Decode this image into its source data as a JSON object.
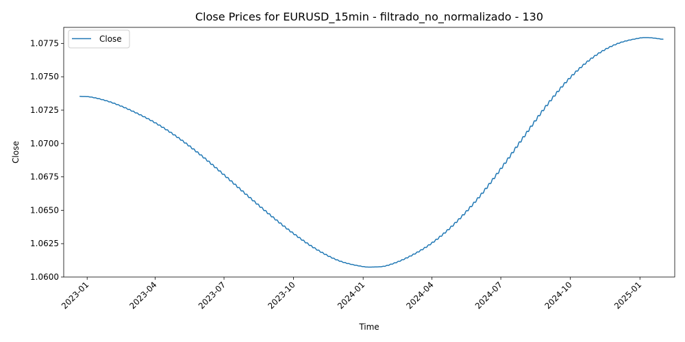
{
  "chart_data": {
    "type": "line",
    "title": "Close Prices for EURUSD_15min - filtrado_no_normalizado - 130",
    "xlabel": "Time",
    "ylabel": "Close",
    "x_range": [
      "2022-12-01",
      "2025-02-16"
    ],
    "ylim": [
      1.06,
      1.0787
    ],
    "grid": false,
    "legend_placement": "upper-left",
    "line_color": "#1f77b4",
    "x_ticks": [
      "2023-01",
      "2023-04",
      "2023-07",
      "2023-10",
      "2024-01",
      "2024-04",
      "2024-07",
      "2024-10",
      "2025-01"
    ],
    "y_ticks": [
      "1.0600",
      "1.0625",
      "1.0650",
      "1.0675",
      "1.0700",
      "1.0725",
      "1.0750",
      "1.0775"
    ],
    "series": [
      {
        "name": "Close",
        "x": [
          "2022-12-22",
          "2023-01-06",
          "2023-02-01",
          "2023-03-01",
          "2023-04-01",
          "2023-05-01",
          "2023-06-01",
          "2023-07-01",
          "2023-08-01",
          "2023-09-01",
          "2023-10-01",
          "2023-11-01",
          "2023-12-01",
          "2024-01-01",
          "2024-01-15",
          "2024-02-01",
          "2024-03-01",
          "2024-04-01",
          "2024-05-01",
          "2024-06-01",
          "2024-07-01",
          "2024-08-01",
          "2024-09-01",
          "2024-10-01",
          "2024-11-01",
          "2024-12-01",
          "2025-01-01",
          "2025-01-15",
          "2025-02-01"
        ],
        "values": [
          1.07353,
          1.07348,
          1.0731,
          1.07245,
          1.07155,
          1.07045,
          1.0691,
          1.06765,
          1.0661,
          1.0646,
          1.06325,
          1.06205,
          1.0612,
          1.06078,
          1.06075,
          1.06085,
          1.0615,
          1.06255,
          1.064,
          1.0659,
          1.0681,
          1.07055,
          1.07295,
          1.07495,
          1.0765,
          1.07745,
          1.0779,
          1.07792,
          1.0778
        ]
      }
    ]
  }
}
